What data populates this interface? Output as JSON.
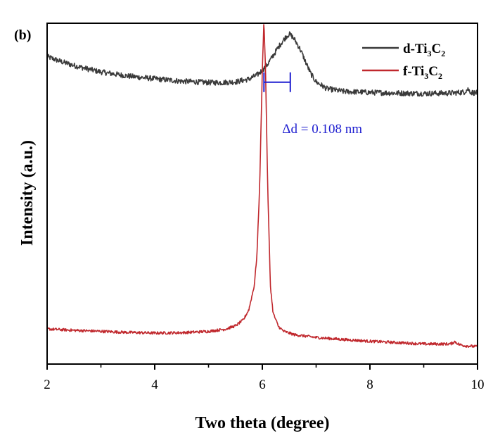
{
  "chart_data": {
    "type": "line",
    "panel_label": "(b)",
    "title": "",
    "xlabel": "Two theta (degree)",
    "ylabel": "Intensity (a.u.)",
    "xlim": [
      2,
      10
    ],
    "ylim": [
      0,
      1
    ],
    "x_ticks": [
      2,
      4,
      6,
      8,
      10
    ],
    "x_tick_labels": [
      "2",
      "4",
      "6",
      "8",
      "10"
    ],
    "y_ticks_shown": false,
    "grid": false,
    "legend": {
      "placement": "top-right",
      "entries": [
        {
          "base": "d-Ti",
          "sub1": "3",
          "mid": "C",
          "sub2": "2",
          "color": "#3a3a3a"
        },
        {
          "base": "f-Ti",
          "sub1": "3",
          "mid": "C",
          "sub2": "2",
          "color": "#c0282d"
        }
      ]
    },
    "annotation": {
      "text": "Δd = 0.108 nm",
      "color": "#1f1fd0",
      "bracket_x": [
        6.03,
        6.52
      ],
      "bracket_y": 0.827,
      "text_x": 6.37,
      "text_y": 0.678
    },
    "series": [
      {
        "name": "d-Ti3C2",
        "color": "#3a3a3a",
        "x": [
          2.0,
          2.25,
          2.5,
          2.75,
          3.0,
          3.5,
          4.0,
          4.5,
          5.0,
          5.25,
          5.5,
          5.75,
          5.9,
          6.0,
          6.1,
          6.2,
          6.3,
          6.4,
          6.45,
          6.5,
          6.55,
          6.6,
          6.7,
          6.8,
          6.9,
          7.0,
          7.2,
          7.5,
          8.0,
          8.5,
          9.0,
          9.5,
          9.75,
          9.82,
          9.88,
          10.0
        ],
        "y": [
          0.902,
          0.888,
          0.876,
          0.866,
          0.857,
          0.845,
          0.837,
          0.83,
          0.826,
          0.826,
          0.828,
          0.836,
          0.848,
          0.862,
          0.88,
          0.905,
          0.93,
          0.952,
          0.962,
          0.968,
          0.962,
          0.952,
          0.925,
          0.888,
          0.852,
          0.828,
          0.808,
          0.8,
          0.797,
          0.795,
          0.794,
          0.795,
          0.798,
          0.807,
          0.797,
          0.795
        ]
      },
      {
        "name": "f-Ti3C2",
        "color": "#c0282d",
        "x": [
          2.0,
          2.5,
          3.0,
          3.5,
          4.0,
          4.5,
          5.0,
          5.3,
          5.5,
          5.65,
          5.75,
          5.85,
          5.9,
          5.95,
          6.0,
          6.03,
          6.06,
          6.1,
          6.15,
          6.2,
          6.3,
          6.4,
          6.6,
          7.0,
          7.5,
          8.0,
          8.5,
          9.0,
          9.5,
          9.58,
          9.65,
          9.75,
          10.0
        ],
        "y": [
          0.103,
          0.099,
          0.096,
          0.093,
          0.091,
          0.092,
          0.096,
          0.102,
          0.112,
          0.13,
          0.16,
          0.23,
          0.32,
          0.52,
          0.86,
          1.01,
          0.86,
          0.52,
          0.23,
          0.15,
          0.11,
          0.096,
          0.086,
          0.078,
          0.072,
          0.067,
          0.063,
          0.059,
          0.059,
          0.066,
          0.058,
          0.054,
          0.051
        ]
      }
    ]
  }
}
